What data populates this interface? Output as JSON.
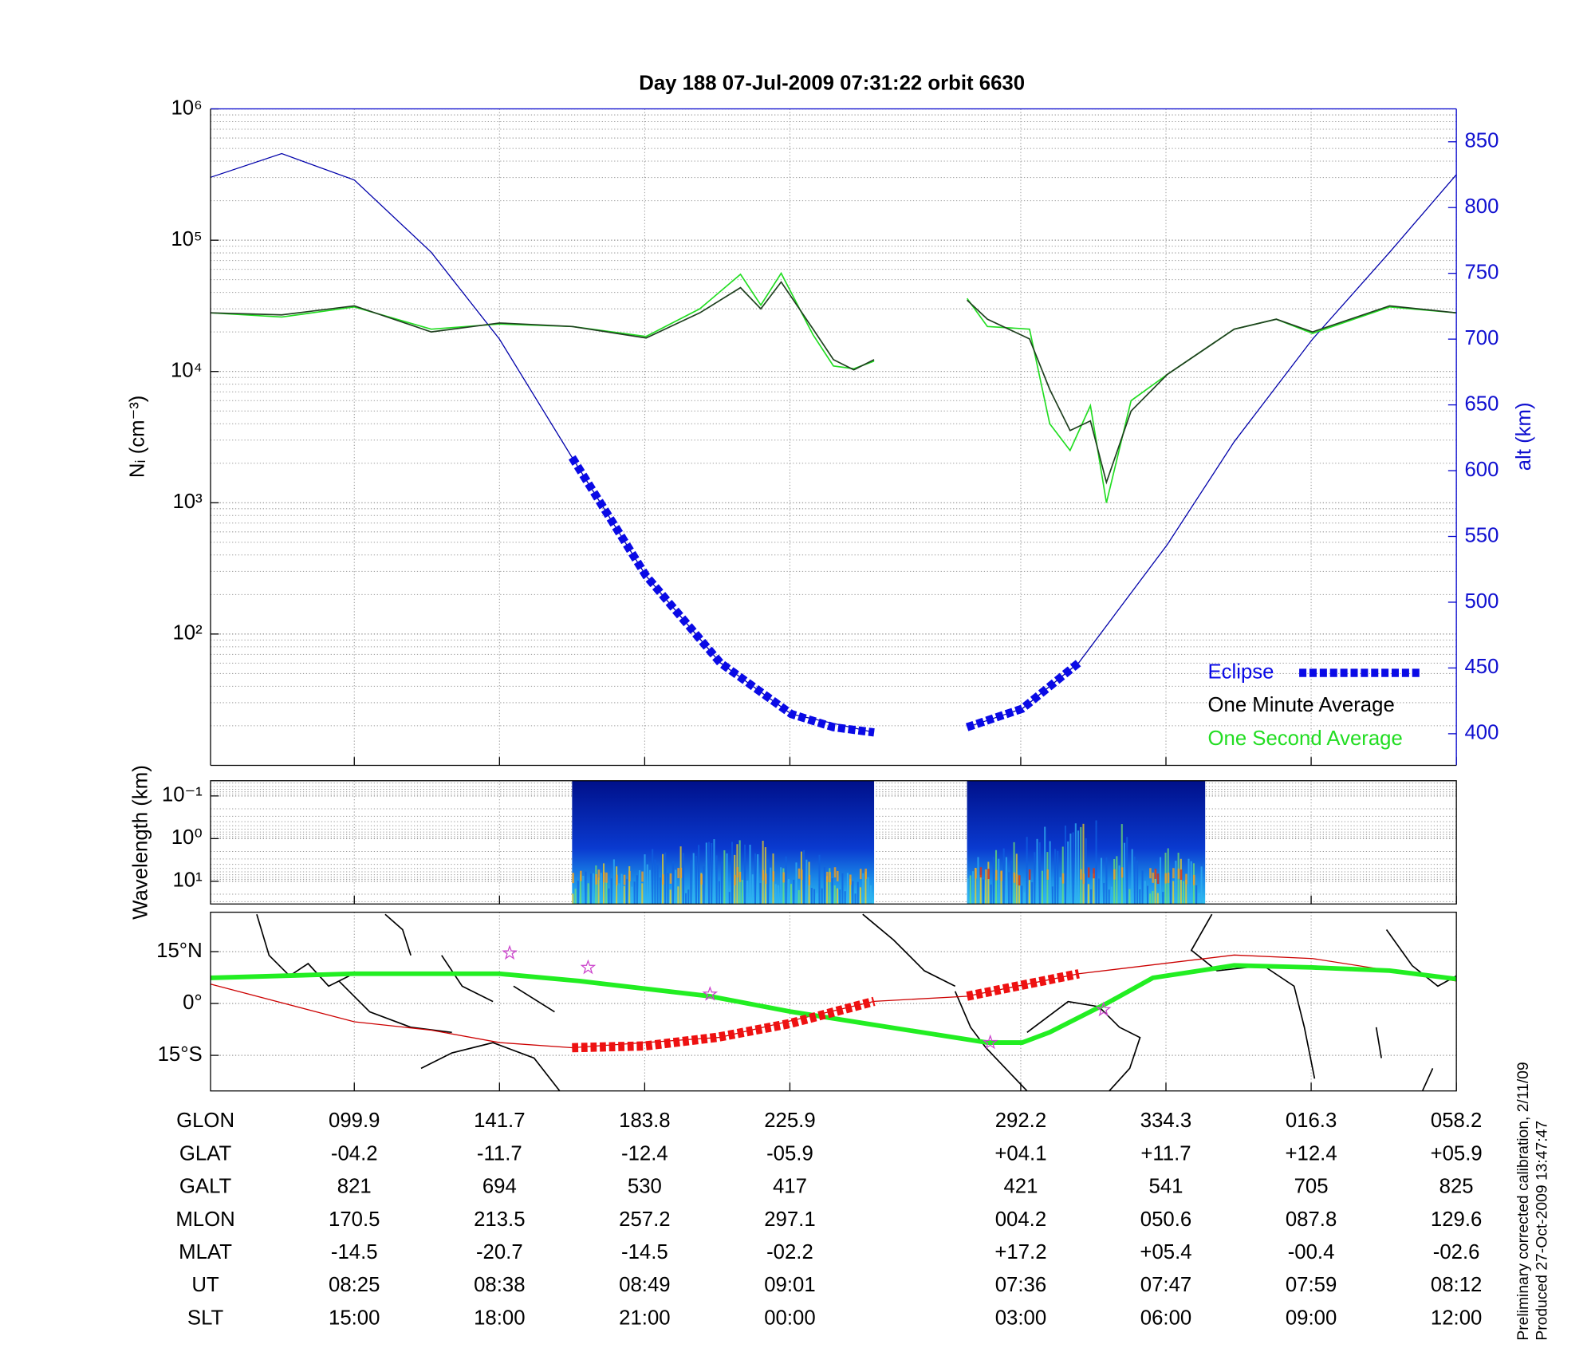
{
  "chart_data": [
    {
      "type": "line",
      "title": "Day 188  07-Jul-2009 07:31:22   orbit 6630",
      "ylabel": "Nᵢ (cm⁻³)",
      "y2label": "alt (km)",
      "log": true,
      "ylim": [
        10,
        1000000
      ],
      "yticks": [
        {
          "value": 100,
          "label": "10²"
        },
        {
          "value": 1000,
          "label": "10³"
        },
        {
          "value": 10000,
          "label": "10⁴"
        },
        {
          "value": 100000,
          "label": "10⁵"
        },
        {
          "value": 1000000,
          "label": "10⁶"
        }
      ],
      "y2lim": [
        376,
        875
      ],
      "y2ticks": [
        400,
        450,
        500,
        550,
        600,
        650,
        700,
        750,
        800,
        850
      ],
      "xlim": [
        -0.99,
        7.59
      ],
      "xticks": [
        0,
        1,
        2,
        3,
        4.59,
        5.59,
        6.59,
        7.59
      ],
      "grid": true,
      "legend": "lower right",
      "series": [
        {
          "name": "Eclipse",
          "color": "#0a0ae6",
          "axis": "y2",
          "style": "dashed",
          "x": [
            1.5,
            2.01,
            2.52,
            3.01,
            3.3,
            3.58,
            3.9,
            4.22,
            4.6,
            4.99
          ],
          "values": [
            610,
            520,
            454,
            415,
            405,
            401,
            null,
            405,
            419,
            454
          ]
        },
        {
          "name": "One Minute Average",
          "color": "#1f3f1f",
          "x": [
            -0.99,
            -0.5,
            0,
            0.53,
            1,
            1.5,
            2.01,
            2.38,
            2.66,
            2.8,
            2.94,
            3.16,
            3.3,
            3.44,
            3.58,
            3.9,
            4.22,
            4.36,
            4.65,
            4.79,
            4.93,
            5.07,
            5.18,
            5.35,
            5.6,
            6.06,
            6.35,
            6.6,
            7.13,
            7.59
          ],
          "values": [
            28000,
            27000,
            31600,
            20000,
            23400,
            22000,
            18000,
            28000,
            43500,
            30000,
            48000,
            21000,
            12300,
            10300,
            12300,
            null,
            35000,
            25000,
            17700,
            7300,
            3550,
            4200,
            1430,
            5000,
            9500,
            21000,
            25000,
            20000,
            31600,
            28000
          ]
        },
        {
          "name": "One Second Average",
          "color": "#22dd22",
          "x": [
            -0.99,
            -0.5,
            0,
            0.53,
            1,
            1.5,
            2.01,
            2.38,
            2.66,
            2.8,
            2.94,
            3.16,
            3.3,
            3.44,
            3.58,
            3.9,
            4.22,
            4.36,
            4.65,
            4.79,
            4.93,
            5.07,
            5.18,
            5.35,
            5.6,
            6.06,
            6.35,
            6.6,
            7.13,
            7.59
          ],
          "values": [
            28000,
            26000,
            31000,
            21000,
            23000,
            22000,
            18500,
            30000,
            55000,
            32000,
            56000,
            19000,
            11000,
            10500,
            12000,
            null,
            36000,
            22000,
            21000,
            4000,
            2500,
            5500,
            1000,
            6000,
            9500,
            21000,
            25000,
            19500,
            31000,
            28000
          ]
        },
        {
          "color": "#0000aa",
          "axis": "y2",
          "x": [
            -0.99,
            -0.5,
            0,
            0.53,
            1,
            1.5,
            2.01,
            2.52,
            3.01,
            3.58,
            3.9,
            4.22,
            4.6,
            4.99,
            5.6,
            6.06,
            6.6,
            7.13,
            7.59
          ],
          "values": [
            823,
            841,
            821,
            766,
            700,
            610,
            520,
            454,
            415,
            401,
            null,
            405,
            419,
            454,
            544,
            622,
            700,
            766,
            825
          ]
        }
      ]
    },
    {
      "type": "spectrogram",
      "ylabel": "Wavelength (km)",
      "log": true,
      "ylim": [
        34,
        0.044
      ],
      "yticks": [
        {
          "value": 0.1,
          "label": "10⁻¹"
        },
        {
          "value": 1,
          "label": "10⁰"
        },
        {
          "value": 10,
          "label": "10¹"
        }
      ],
      "xlim": [
        -0.99,
        7.59
      ],
      "xticks": [
        0,
        1,
        2,
        3,
        4.59,
        5.59,
        6.59,
        7.59
      ],
      "segments": [
        [
          1.5,
          3.58
        ],
        [
          4.22,
          5.86
        ]
      ]
    },
    {
      "type": "map",
      "ylim": [
        -25.3,
        26.4
      ],
      "yticks": [
        {
          "value": 15,
          "label": "15°N"
        },
        {
          "value": 0,
          "label": "0°"
        },
        {
          "value": -15,
          "label": "15°S"
        }
      ],
      "xlim": [
        -0.99,
        7.59
      ],
      "xticks": [
        0,
        1,
        2,
        3,
        4.59,
        5.59,
        6.59,
        7.59
      ],
      "series": [
        {
          "color": "#cc0000",
          "x": [
            -0.99,
            0,
            0.53,
            1,
            1.5,
            2.52,
            3.58,
            4.22,
            4.99,
            6.06,
            6.6,
            7.59
          ],
          "values": [
            5.6,
            -5.3,
            -7.7,
            -11.3,
            -12.8,
            -9.8,
            0.6,
            2.1,
            8.6,
            14,
            13,
            6.5
          ]
        },
        {
          "color": "#22ee22",
          "x": [
            -0.99,
            0,
            1,
            1.55,
            2.45,
            3.01,
            3.58,
            4.36,
            4.6,
            4.79,
            5.18,
            5.5,
            6.06,
            6.6,
            7.13,
            7.59
          ],
          "values": [
            7.4,
            8.6,
            8.6,
            6.5,
            2.1,
            -2.4,
            -6.2,
            -11.3,
            -11.3,
            -8.3,
            0,
            7.4,
            11,
            10.4,
            9.5,
            7.1
          ]
        },
        {
          "color": "#ee1111",
          "style": "dashed",
          "x": [
            1.5,
            2.0,
            2.5,
            3.0,
            3.58,
            3.9,
            4.22,
            4.99
          ],
          "values": [
            -12.8,
            -12.3,
            -9.8,
            -5.8,
            0.6,
            null,
            2.1,
            8.6
          ]
        }
      ],
      "markers": {
        "color": "#cc44cc",
        "x": [
          1.07,
          1.61,
          2.45,
          4.38,
          5.16
        ],
        "y": [
          14.6,
          10.4,
          2.7,
          -11.3,
          -1.8
        ]
      }
    }
  ],
  "table": {
    "rows": [
      [
        "GLON",
        "099.9",
        "141.7",
        "183.8",
        "225.9",
        "292.2",
        "334.3",
        "016.3",
        "058.2"
      ],
      [
        "GLAT",
        "-04.2",
        "-11.7",
        "-12.4",
        "-05.9",
        "+04.1",
        "+11.7",
        "+12.4",
        "+05.9"
      ],
      [
        "GALT",
        "821",
        "694",
        "530",
        "417",
        "421",
        "541",
        "705",
        "825"
      ],
      [
        "MLON",
        "170.5",
        "213.5",
        "257.2",
        "297.1",
        "004.2",
        "050.6",
        "087.8",
        "129.6"
      ],
      [
        "MLAT",
        "-14.5",
        "-20.7",
        "-14.5",
        "-02.2",
        "+17.2",
        "+05.4",
        "-00.4",
        "-02.6"
      ],
      [
        "UT",
        "08:25",
        "08:38",
        "08:49",
        "09:01",
        "07:36",
        "07:47",
        "07:59",
        "08:12"
      ],
      [
        "SLT",
        "15:00",
        "18:00",
        "21:00",
        "00:00",
        "03:00",
        "06:00",
        "09:00",
        "12:00"
      ]
    ]
  },
  "footnote": [
    "Preliminary corrected calibration, 2/11/09",
    "Produced 27-Oct-2009 13:47:47"
  ]
}
